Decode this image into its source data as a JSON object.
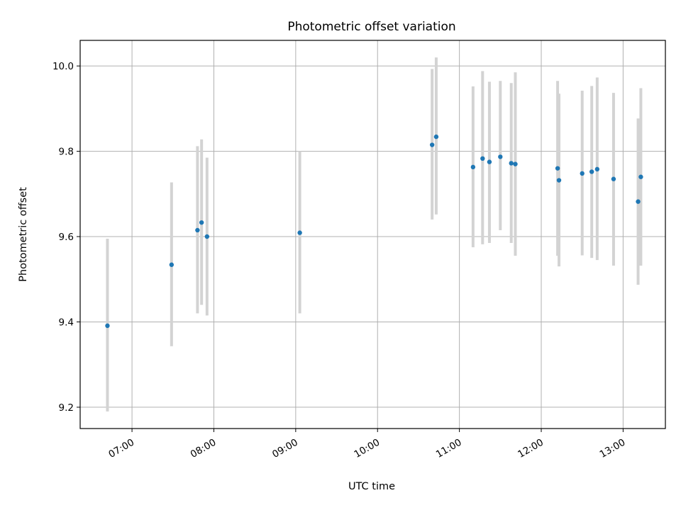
{
  "chart_data": {
    "type": "scatter",
    "title": "Photometric offset variation",
    "xlabel": "UTC time",
    "ylabel": "Photometric offset",
    "xlim": [
      "06:22",
      "13:31"
    ],
    "ylim": [
      9.15,
      10.06
    ],
    "xticks": [
      "07:00",
      "08:00",
      "09:00",
      "10:00",
      "11:00",
      "12:00",
      "13:00"
    ],
    "yticks": [
      9.2,
      9.4,
      9.6,
      9.8,
      10.0
    ],
    "ytick_labels": [
      "9.2",
      "9.4",
      "9.6",
      "9.8",
      "10.0"
    ],
    "grid": true,
    "marker_color": "#1f77b4",
    "errorbar_color": "#d3d3d3",
    "points": [
      {
        "time": "06:42",
        "y": 9.391,
        "ylow": 9.19,
        "yhigh": 9.595
      },
      {
        "time": "07:29",
        "y": 9.534,
        "ylow": 9.343,
        "yhigh": 9.727
      },
      {
        "time": "07:48",
        "y": 9.615,
        "ylow": 9.42,
        "yhigh": 9.812
      },
      {
        "time": "07:51",
        "y": 9.633,
        "ylow": 9.44,
        "yhigh": 9.828
      },
      {
        "time": "07:55",
        "y": 9.6,
        "ylow": 9.415,
        "yhigh": 9.785
      },
      {
        "time": "09:03",
        "y": 9.609,
        "ylow": 9.42,
        "yhigh": 9.8
      },
      {
        "time": "10:40",
        "y": 9.815,
        "ylow": 9.64,
        "yhigh": 9.993
      },
      {
        "time": "10:43",
        "y": 9.834,
        "ylow": 9.652,
        "yhigh": 10.02
      },
      {
        "time": "11:10",
        "y": 9.763,
        "ylow": 9.575,
        "yhigh": 9.952
      },
      {
        "time": "11:17",
        "y": 9.783,
        "ylow": 9.582,
        "yhigh": 9.988
      },
      {
        "time": "11:22",
        "y": 9.775,
        "ylow": 9.585,
        "yhigh": 9.963
      },
      {
        "time": "11:30",
        "y": 9.787,
        "ylow": 9.615,
        "yhigh": 9.965
      },
      {
        "time": "11:38",
        "y": 9.772,
        "ylow": 9.585,
        "yhigh": 9.96
      },
      {
        "time": "11:41",
        "y": 9.77,
        "ylow": 9.555,
        "yhigh": 9.985
      },
      {
        "time": "12:12",
        "y": 9.76,
        "ylow": 9.555,
        "yhigh": 9.965
      },
      {
        "time": "12:13",
        "y": 9.732,
        "ylow": 9.53,
        "yhigh": 9.935
      },
      {
        "time": "12:30",
        "y": 9.748,
        "ylow": 9.556,
        "yhigh": 9.942
      },
      {
        "time": "12:37",
        "y": 9.752,
        "ylow": 9.55,
        "yhigh": 9.953
      },
      {
        "time": "12:41",
        "y": 9.758,
        "ylow": 9.545,
        "yhigh": 9.973
      },
      {
        "time": "12:53",
        "y": 9.735,
        "ylow": 9.532,
        "yhigh": 9.937
      },
      {
        "time": "13:11",
        "y": 9.682,
        "ylow": 9.487,
        "yhigh": 9.877
      },
      {
        "time": "13:13",
        "y": 9.74,
        "ylow": 9.532,
        "yhigh": 9.948
      }
    ]
  }
}
